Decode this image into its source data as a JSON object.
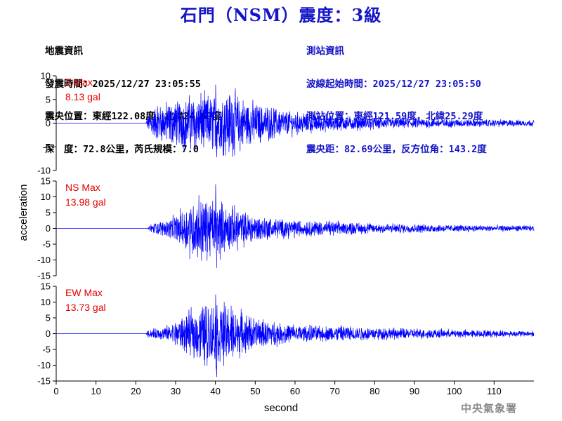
{
  "title": "石門（NSM）震度：3級",
  "event_info": {
    "heading": "地震資訊",
    "origin_time": "發震時間：2025/12/27 23:05:55",
    "epicenter": "震央位置：東經122.08度，北緯24.69度",
    "depth_magnitude": "深　度：72.8公里，芮氏規模：7.0"
  },
  "station_info": {
    "heading": "測站資訊",
    "wave_start": "波線起始時間：2025/12/27 23:05:50",
    "location": "測站位置：東經121.59度，北緯25.29度",
    "distance_azimuth": "震央距：82.69公里，反方位角：143.2度"
  },
  "watermark": "中央氣象署",
  "colors": {
    "title": "#1414c8",
    "trace": "#0000ff",
    "max_label": "#e60000",
    "axis": "#000000",
    "info_right": "#1414c8"
  },
  "chart_data": {
    "type": "line",
    "xlabel": "second",
    "ylabel": "acceleration",
    "xlim": [
      0,
      120
    ],
    "xticks": [
      0,
      10,
      20,
      30,
      40,
      50,
      60,
      70,
      80,
      90,
      100,
      110
    ],
    "p_arrival_s": 22.5,
    "peak_time_s": 40,
    "panels": [
      {
        "name": "Z",
        "max_label": "Z Max",
        "max_value": "8.13 gal",
        "ylim": [
          -10,
          10
        ],
        "yticks": [
          -10,
          -5,
          0,
          5,
          10
        ],
        "max_pos": 8.13,
        "max_neg": -7.2,
        "envelope": [
          [
            0,
            0
          ],
          [
            22.5,
            0
          ],
          [
            23,
            1.5
          ],
          [
            25,
            3.5
          ],
          [
            30,
            4.5
          ],
          [
            35,
            5.5
          ],
          [
            40,
            5.5
          ],
          [
            44,
            6.5
          ],
          [
            48,
            4.5
          ],
          [
            52,
            3.5
          ],
          [
            56,
            2.8
          ],
          [
            60,
            2.2
          ],
          [
            65,
            1.8
          ],
          [
            70,
            1.5
          ],
          [
            80,
            1.2
          ],
          [
            90,
            1.0
          ],
          [
            100,
            0.8
          ],
          [
            110,
            0.7
          ],
          [
            120,
            0.6
          ]
        ]
      },
      {
        "name": "NS",
        "max_label": "NS Max",
        "max_value": "13.98 gal",
        "ylim": [
          -15,
          15
        ],
        "yticks": [
          -15,
          -10,
          -5,
          0,
          5,
          10,
          15
        ],
        "max_pos": 13.98,
        "max_neg": -12.5,
        "envelope": [
          [
            0,
            0
          ],
          [
            23,
            0
          ],
          [
            24,
            1.5
          ],
          [
            28,
            2.5
          ],
          [
            30,
            4.0
          ],
          [
            33,
            7.0
          ],
          [
            36,
            10.0
          ],
          [
            39,
            8.0
          ],
          [
            42,
            7.5
          ],
          [
            46,
            5.5
          ],
          [
            50,
            4.0
          ],
          [
            55,
            3.0
          ],
          [
            60,
            2.5
          ],
          [
            70,
            2.0
          ],
          [
            80,
            1.5
          ],
          [
            90,
            1.3
          ],
          [
            100,
            1.0
          ],
          [
            110,
            0.9
          ],
          [
            120,
            0.8
          ]
        ]
      },
      {
        "name": "EW",
        "max_label": "EW Max",
        "max_value": "13.73 gal",
        "ylim": [
          -15,
          15
        ],
        "yticks": [
          -15,
          -10,
          -5,
          0,
          5,
          10,
          15
        ],
        "max_pos": 12.4,
        "max_neg": -13.73,
        "envelope": [
          [
            0,
            0
          ],
          [
            22.5,
            0
          ],
          [
            23,
            1.0
          ],
          [
            27,
            2.0
          ],
          [
            30,
            3.5
          ],
          [
            34,
            6.5
          ],
          [
            37,
            9.0
          ],
          [
            40,
            9.5
          ],
          [
            43,
            8.5
          ],
          [
            47,
            6.0
          ],
          [
            52,
            4.0
          ],
          [
            57,
            3.0
          ],
          [
            62,
            2.5
          ],
          [
            68,
            2.2
          ],
          [
            72,
            2.5
          ],
          [
            80,
            1.8
          ],
          [
            90,
            1.5
          ],
          [
            100,
            1.2
          ],
          [
            110,
            1.0
          ],
          [
            120,
            0.8
          ]
        ]
      }
    ]
  }
}
